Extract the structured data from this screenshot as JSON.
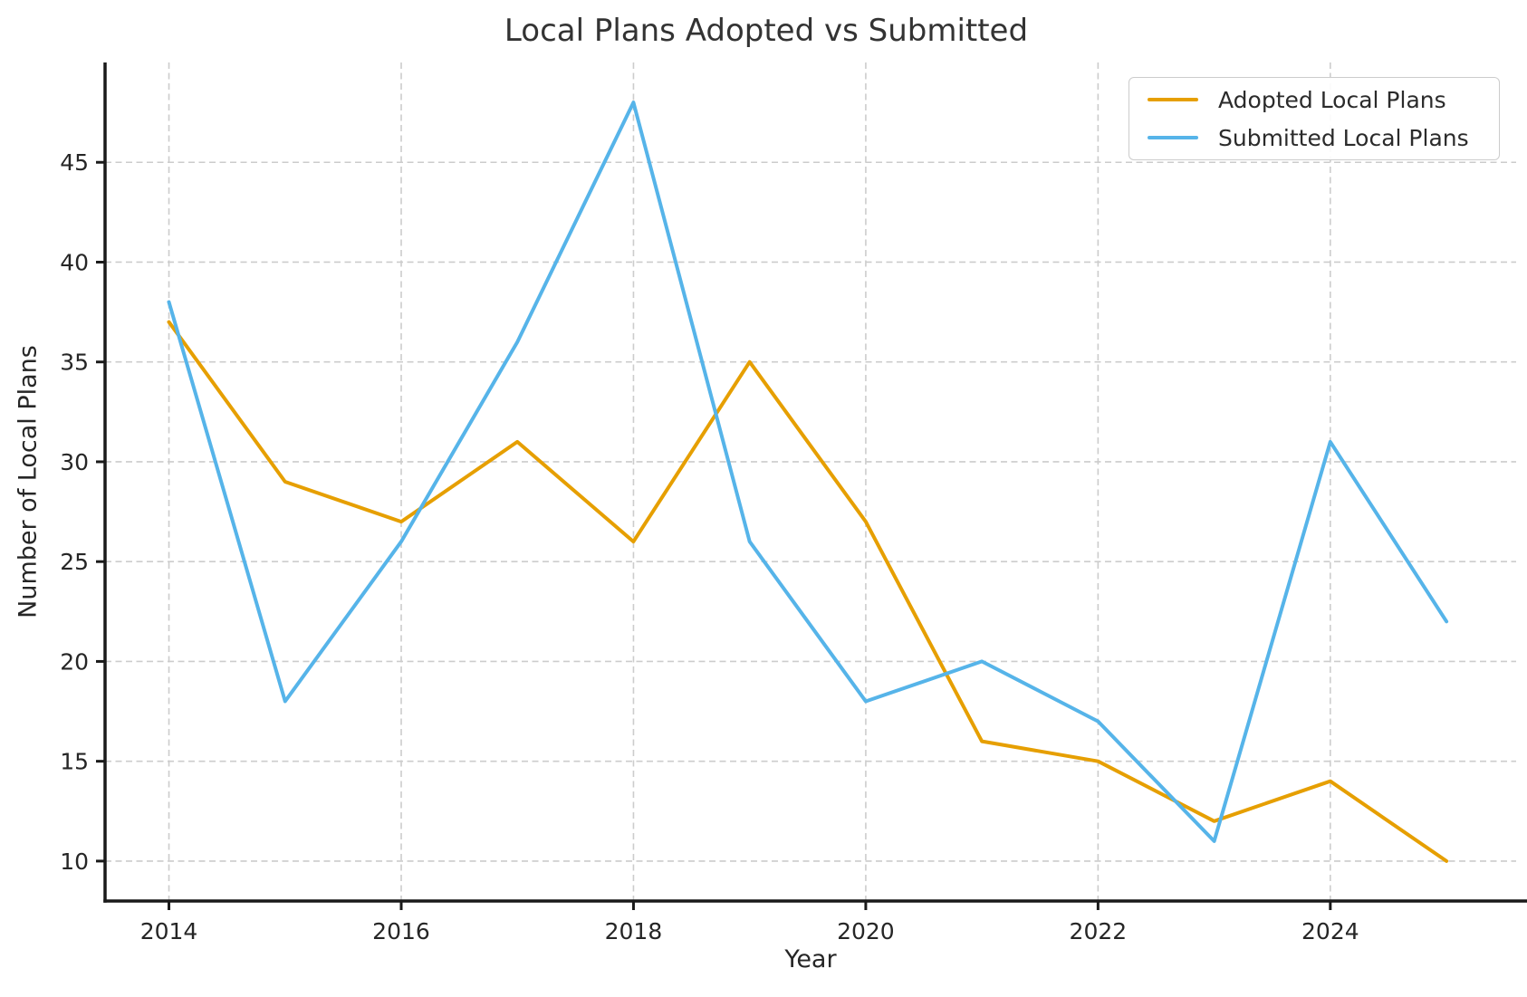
{
  "chart_data": {
    "type": "line",
    "title": "Local Plans Adopted vs Submitted",
    "xlabel": "Year",
    "ylabel": "Number of Local Plans",
    "x": [
      2014,
      2015,
      2016,
      2017,
      2018,
      2019,
      2020,
      2021,
      2022,
      2023,
      2024,
      2025
    ],
    "series": [
      {
        "name": "Adopted Local Plans",
        "color": "#E69F00",
        "values": [
          37,
          29,
          27,
          31,
          26,
          35,
          27,
          16,
          15,
          12,
          14,
          10
        ]
      },
      {
        "name": "Submitted Local Plans",
        "color": "#56B4E9",
        "values": [
          38,
          18,
          26,
          36,
          48,
          26,
          18,
          20,
          17,
          11,
          31,
          22
        ]
      }
    ],
    "xticks": [
      2014,
      2016,
      2018,
      2020,
      2022,
      2024
    ],
    "yticks": [
      10,
      15,
      20,
      25,
      30,
      35,
      40,
      45
    ],
    "xlim": [
      2013.45,
      2025.6
    ],
    "ylim": [
      8,
      50
    ],
    "grid": "dashed",
    "legend_position": "upper right",
    "colors": {
      "grid": "#cccccc",
      "spine": "#1a1a1a",
      "tick_text": "#262626",
      "title_text": "#333333"
    }
  }
}
